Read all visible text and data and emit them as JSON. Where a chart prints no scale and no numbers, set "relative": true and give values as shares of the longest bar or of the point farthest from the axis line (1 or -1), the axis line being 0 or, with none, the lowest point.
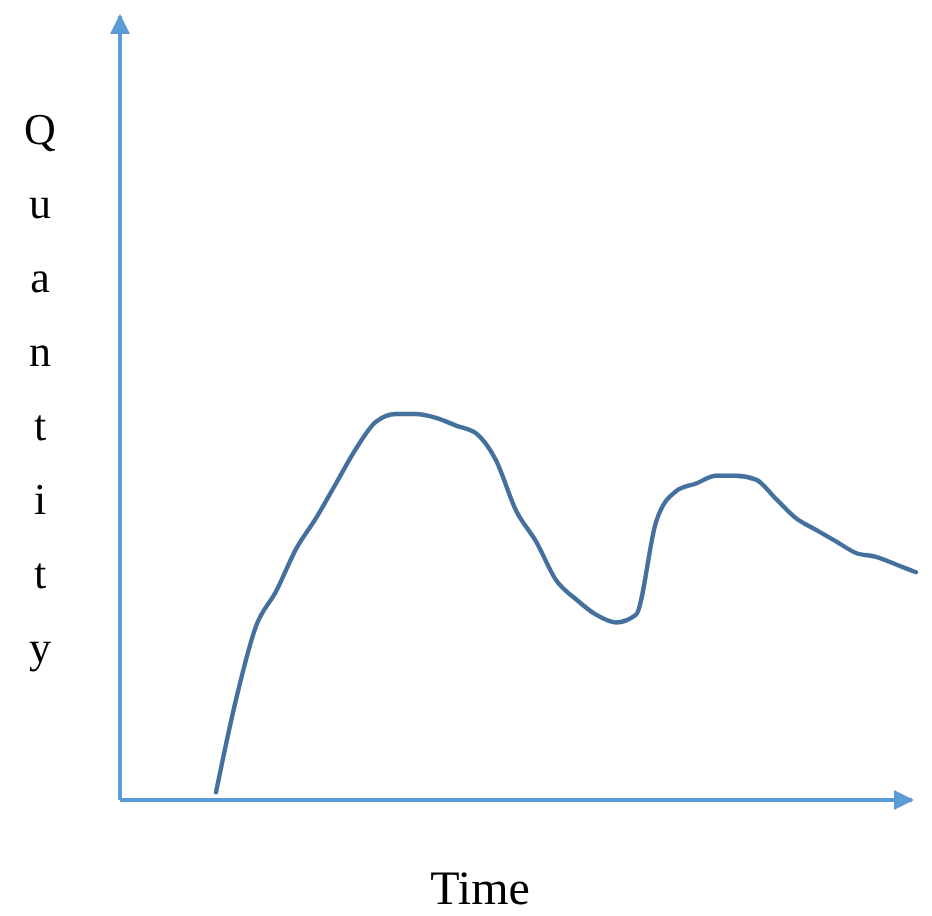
{
  "chart_data": {
    "type": "line",
    "relative": true,
    "xlabel": "Time",
    "ylabel": "Quantity",
    "tick_labels": false,
    "grid": false,
    "categories": [
      null,
      null,
      null,
      null,
      null,
      null,
      null,
      null,
      null,
      null,
      null,
      null,
      null,
      null,
      null,
      null,
      null,
      null,
      null,
      null,
      null,
      null,
      null,
      null,
      null,
      null,
      null,
      null,
      null,
      null,
      null,
      null,
      null,
      null,
      null,
      null
    ],
    "series": [
      {
        "color": "#44709d",
        "values": [
          0.02,
          0.26,
          0.45,
          0.54,
          0.65,
          0.73,
          0.82,
          0.91,
          0.98,
          1.0,
          1.0,
          0.99,
          0.97,
          0.95,
          0.88,
          0.75,
          0.67,
          0.57,
          0.52,
          0.48,
          0.46,
          0.48,
          0.72,
          0.8,
          0.82,
          0.84,
          0.84,
          0.83,
          0.78,
          0.73,
          0.7,
          0.67,
          0.64,
          0.63,
          0.61,
          0.59
        ]
      }
    ]
  }
}
